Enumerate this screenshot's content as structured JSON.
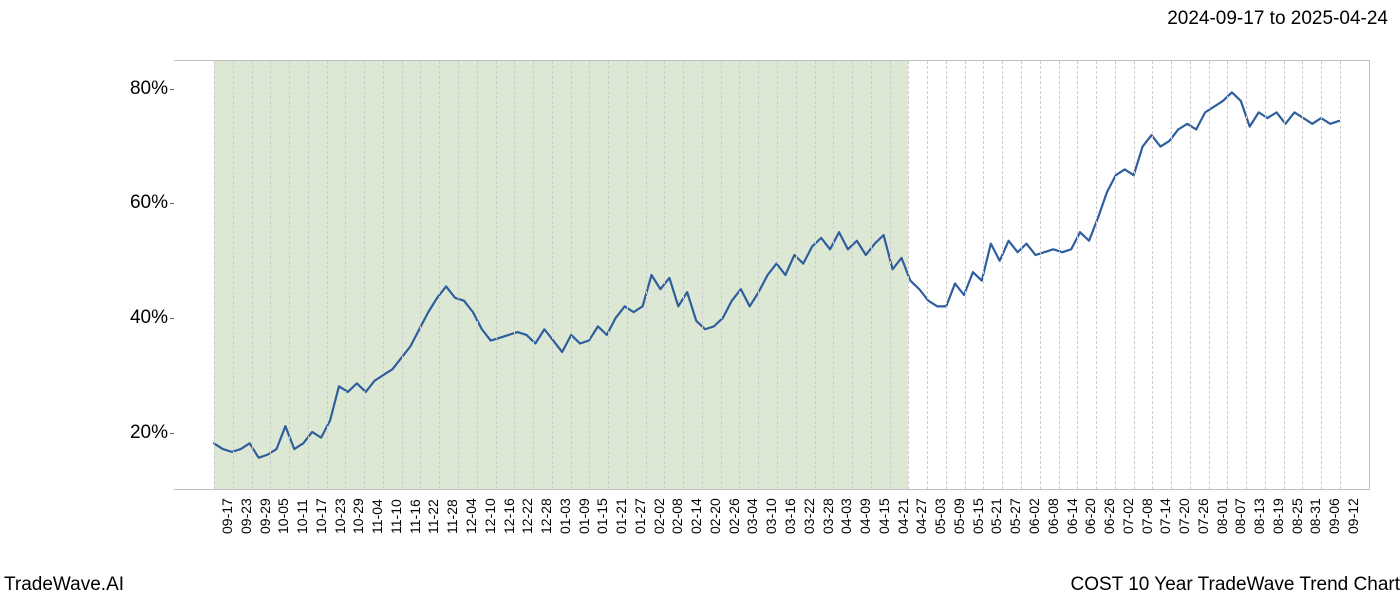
{
  "header": {
    "date_range": "2024-09-17 to 2025-04-24"
  },
  "footer": {
    "left": "TradeWave.AI",
    "right": "COST 10 Year TradeWave Trend Chart"
  },
  "chart": {
    "type": "line",
    "background_color": "#ffffff",
    "shade_color": "#dde8d4",
    "grid_color": "#cccccc",
    "line_color": "#2e5e9e",
    "line_width": 2.2,
    "font_family": "sans-serif",
    "y_axis": {
      "ticks": [
        20,
        40,
        60,
        80
      ],
      "tick_labels": [
        "20%",
        "40%",
        "60%",
        "80%"
      ],
      "min": 10,
      "max": 85,
      "label_fontsize": 19
    },
    "x_axis": {
      "labels": [
        "09-17",
        "09-23",
        "09-29",
        "10-05",
        "10-11",
        "10-17",
        "10-23",
        "10-29",
        "11-04",
        "11-10",
        "11-16",
        "11-22",
        "11-28",
        "12-04",
        "12-10",
        "12-16",
        "12-22",
        "12-28",
        "01-03",
        "01-09",
        "01-15",
        "01-21",
        "01-27",
        "02-02",
        "02-08",
        "02-14",
        "02-20",
        "02-26",
        "03-04",
        "03-10",
        "03-16",
        "03-22",
        "03-28",
        "04-03",
        "04-09",
        "04-15",
        "04-21",
        "04-27",
        "05-03",
        "05-09",
        "05-15",
        "05-21",
        "05-27",
        "06-02",
        "06-08",
        "06-14",
        "06-20",
        "06-26",
        "07-02",
        "07-08",
        "07-14",
        "07-20",
        "07-26",
        "08-01",
        "08-07",
        "08-13",
        "08-19",
        "08-25",
        "08-31",
        "09-06",
        "09-12"
      ],
      "label_fontsize": 14,
      "rotation": -90
    },
    "shade": {
      "start_index": 0,
      "end_index": 37
    },
    "series": {
      "values": [
        18,
        17,
        16.5,
        17,
        18,
        15.5,
        16,
        17,
        21,
        17,
        18,
        20,
        19,
        22,
        28,
        27,
        28.5,
        27,
        29,
        30,
        31,
        33,
        35,
        38,
        41,
        43.5,
        45.5,
        43.5,
        43,
        41,
        38,
        36,
        36.5,
        37,
        37.5,
        37,
        35.5,
        38,
        36,
        34,
        37,
        35.5,
        36,
        38.5,
        37,
        40,
        42,
        41,
        42,
        47.5,
        45,
        47,
        42,
        44.5,
        39.5,
        38,
        38.5,
        40,
        43,
        45,
        42,
        44.5,
        47.5,
        49.5,
        47.5,
        51,
        49.5,
        52.5,
        54,
        52,
        55,
        52,
        53.5,
        51,
        53,
        54.5,
        48.5,
        50.5,
        46.5,
        45,
        43,
        42,
        42,
        46,
        44,
        48,
        46.5,
        53,
        50,
        53.5,
        51.5,
        53,
        51,
        51.5,
        52,
        51.5,
        52,
        55,
        53.5,
        57.5,
        62,
        65,
        66,
        65,
        70,
        72,
        70,
        71,
        73,
        74,
        73,
        76,
        77,
        78,
        79.5,
        78,
        73.5,
        76,
        75,
        76,
        74,
        76,
        75,
        74,
        75,
        74,
        74.5
      ]
    }
  }
}
